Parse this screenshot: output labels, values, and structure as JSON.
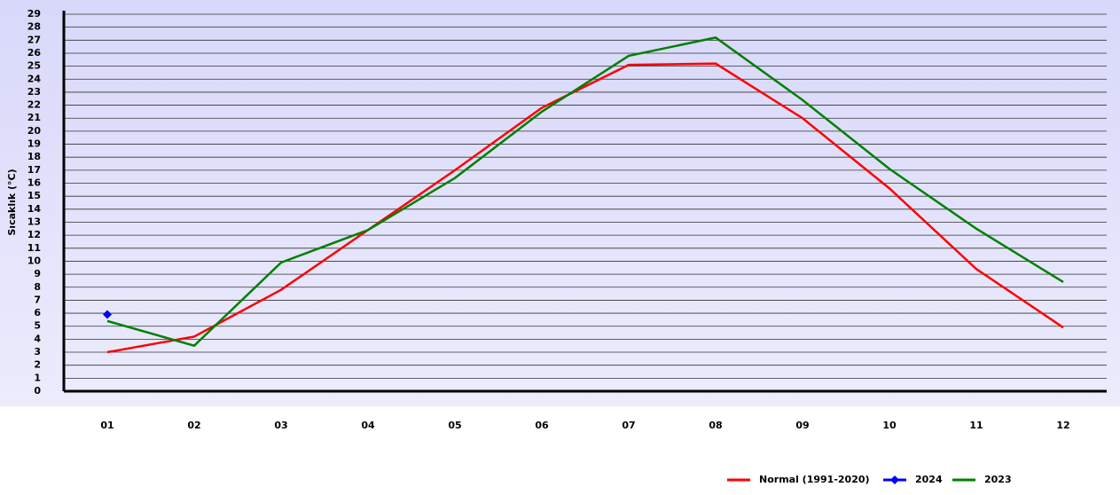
{
  "chart_data": {
    "type": "line",
    "y_label": "Sıcaklık (°C)",
    "categories": [
      "01",
      "02",
      "03",
      "04",
      "05",
      "06",
      "07",
      "08",
      "09",
      "10",
      "11",
      "12"
    ],
    "series": [
      {
        "name": "Normal (1991-2020)",
        "color": "#ff0000",
        "values": [
          3.0,
          4.2,
          7.8,
          12.4,
          17.0,
          21.8,
          25.1,
          25.2,
          21.0,
          15.6,
          9.4,
          4.9
        ]
      },
      {
        "name": "2024",
        "color": "#0000ff",
        "marker": "diamond",
        "values": [
          5.9,
          null,
          null,
          null,
          null,
          null,
          null,
          null,
          null,
          null,
          null,
          null
        ]
      },
      {
        "name": "2023",
        "color": "#008000",
        "values": [
          5.4,
          3.5,
          9.9,
          12.4,
          16.4,
          21.5,
          25.8,
          27.2,
          22.4,
          17.1,
          12.5,
          8.4
        ]
      }
    ],
    "ylim": [
      0,
      29
    ],
    "yticks": [
      0,
      1,
      2,
      3,
      4,
      5,
      6,
      7,
      8,
      9,
      10,
      11,
      12,
      13,
      14,
      15,
      16,
      17,
      18,
      19,
      20,
      21,
      22,
      23,
      24,
      25,
      26,
      27,
      28,
      29
    ],
    "grid": true,
    "legend": "bottom-right"
  }
}
